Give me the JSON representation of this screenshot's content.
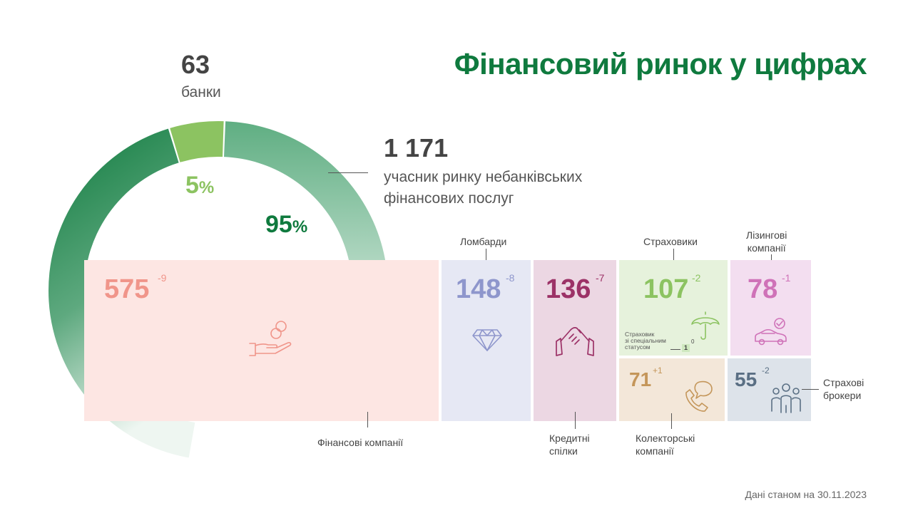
{
  "title": "Фінансовий ринок у цифрах",
  "banks": {
    "value": "63",
    "label": "банки"
  },
  "non_bank": {
    "value": "1 171",
    "label_line1": "учасник ринку небанківських",
    "label_line2": "фінансових послуг"
  },
  "share_banks": {
    "value": "5",
    "unit": "%"
  },
  "share_non_bank": {
    "value": "95",
    "unit": "%"
  },
  "segments": {
    "finance": {
      "value": "575",
      "change": "-9",
      "label": "Фінансові компанії"
    },
    "pawnshops": {
      "value": "148",
      "change": "-8",
      "label": "Ломбарди"
    },
    "credit_unions": {
      "value": "136",
      "change": "-7",
      "label_line1": "Кредитні",
      "label_line2": "спілки"
    },
    "insurers": {
      "value": "107",
      "change": "-2",
      "label": "Страховики",
      "special_line1": "Страховик",
      "special_line2": "зі спеціальним",
      "special_line3": "статусом",
      "special_value": "1",
      "special_change": "0"
    },
    "leasing": {
      "value": "78",
      "change": "-1",
      "label_line1": "Лізингові",
      "label_line2": "компанії"
    },
    "collectors": {
      "value": "71",
      "change": "+1",
      "label_line1": "Колекторські",
      "label_line2": "компанії"
    },
    "brokers": {
      "value": "55",
      "change": "-2",
      "label_line1": "Страхові",
      "label_line2": "брокери"
    }
  },
  "note": "Дані станом на 30.11.2023",
  "colors": {
    "title": "#0f7a3e",
    "ring_dark": "#0f7a3e",
    "ring_light": "#8cc361",
    "finance_bg": "#fde6e3",
    "finance_fg": "#f0958a",
    "pawn_bg": "#e6e8f4",
    "pawn_fg": "#8e96cc",
    "credit_bg": "#ecd7e3",
    "credit_fg": "#9c3267",
    "insur_bg": "#e6f2dc",
    "insur_fg": "#8cc361",
    "leasing_bg": "#f3def0",
    "leasing_fg": "#cf72b8",
    "collect_bg": "#f3e7d9",
    "collect_fg": "#c4965a",
    "broker_bg": "#dde3ea",
    "broker_fg": "#5a6f84"
  },
  "icons": {
    "finance": "hand-coins-icon",
    "pawnshops": "diamond-icon",
    "credit_unions": "handshake-icon",
    "insurers": "umbrella-icon",
    "leasing": "car-check-icon",
    "collectors": "phone-chat-icon",
    "brokers": "people-group-icon"
  },
  "chart_data": {
    "type": "treemap",
    "total_shares": [
      {
        "name": "банки",
        "value": 63,
        "percent": 5
      },
      {
        "name": "учасник ринку небанківських фінансових послуг",
        "value": 1171,
        "percent": 95
      }
    ],
    "categories": [
      "Фінансові компанії",
      "Ломбарди",
      "Кредитні спілки",
      "Страховики",
      "Лізингові компанії",
      "Колекторські компанії",
      "Страхові брокери"
    ],
    "values": [
      575,
      148,
      136,
      107,
      78,
      71,
      55
    ],
    "changes": [
      -9,
      -8,
      -7,
      -2,
      -1,
      1,
      -2
    ],
    "extra": {
      "name": "Страховик зі спеціальним статусом",
      "value": 1,
      "change": 0
    }
  }
}
